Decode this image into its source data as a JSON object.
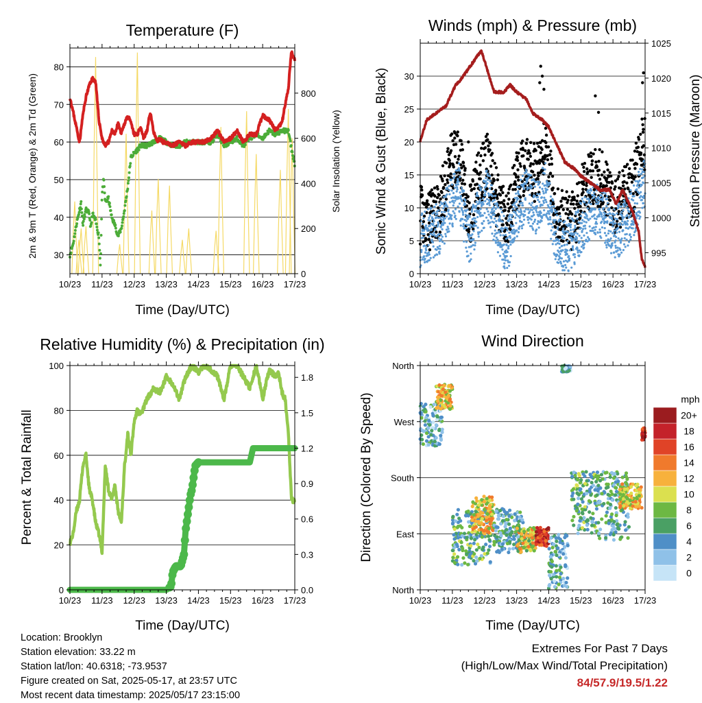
{
  "panels": {
    "temperature": {
      "title": "Temperature (F)",
      "ylabel_left": "2m & 9m T (Red, Orange) & 2m Td (Green)",
      "ylabel_right": "Solar Insolation (Yellow)",
      "xlabel": "Time (Day/UTC)"
    },
    "winds": {
      "title": "Winds (mph) & Pressure (mb)",
      "ylabel_left": "Sonic Wind & Gust (Blue, Black)",
      "ylabel_right": "Station Pressure (Maroon)",
      "xlabel": "Time (Day/UTC)"
    },
    "humidity": {
      "title": "Relative Humidity (%) & Precipitation (in)",
      "ylabel_left": "Percent & Total Rainfall",
      "xlabel": "Time (Day/UTC)"
    },
    "direction": {
      "title": "Wind Direction",
      "ylabel_left": "Direction (Colored By Speed)",
      "xlabel": "Time (Day/UTC)",
      "colorbar_title": "mph"
    }
  },
  "info": {
    "location": "Location: Brooklyn",
    "elevation": "Station elevation: 33.22 m",
    "latlon": "Station lat/lon: 40.6318; -73.9537",
    "created": "Figure created on Sat, 2025-05-17, at 23:57 UTC",
    "recent": "Most recent data timestamp: 2025/05/17 23:15:00"
  },
  "extremes": {
    "line1": "Extremes For Past 7 Days",
    "line2": "(High/Low/Max Wind/Total Precipitation)",
    "values": "84/57.9/19.5/1.22"
  },
  "chart_data": [
    {
      "type": "line",
      "title": "Temperature (F)",
      "xlabel": "Time (Day/UTC)",
      "ylabel": "2m & 9m T (Red, Orange) & 2m Td (Green)",
      "ylabel_right": "Solar Insolation (Yellow)",
      "x_ticks": [
        "10/23",
        "11/23",
        "12/23",
        "13/23",
        "14/23",
        "15/23",
        "16/23",
        "17/23"
      ],
      "xlim": [
        0,
        7
      ],
      "ylim": [
        25,
        85
      ],
      "ylim_right": [
        0,
        1000
      ],
      "yticks": [
        30,
        40,
        50,
        60,
        70,
        80
      ],
      "yticks_right": [
        0,
        200,
        400,
        600,
        800
      ],
      "grid": true,
      "series": [
        {
          "name": "2m & 9m T",
          "color": "#d42020",
          "axis": "left",
          "x": [
            0,
            0.1,
            0.2,
            0.3,
            0.4,
            0.5,
            0.6,
            0.7,
            0.8,
            0.9,
            1.0,
            1.1,
            1.2,
            1.3,
            1.4,
            1.5,
            1.6,
            1.7,
            1.8,
            1.9,
            2.0,
            2.1,
            2.2,
            2.3,
            2.4,
            2.5,
            2.6,
            2.7,
            2.8,
            2.9,
            3.0,
            3.2,
            3.4,
            3.6,
            3.8,
            4.0,
            4.2,
            4.4,
            4.6,
            4.8,
            5.0,
            5.2,
            5.4,
            5.6,
            5.8,
            6.0,
            6.2,
            6.4,
            6.5,
            6.6,
            6.7,
            6.8,
            6.85,
            6.9,
            6.95,
            7.0
          ],
          "y": [
            72,
            68,
            64,
            60,
            67,
            72,
            75,
            77,
            76,
            66,
            61,
            59,
            60,
            63,
            62,
            65,
            62,
            65,
            67,
            65,
            62,
            62,
            64,
            61,
            63,
            68,
            63,
            60,
            61,
            60,
            60,
            59,
            60,
            59,
            60,
            60,
            60,
            61,
            63,
            60,
            61,
            63,
            60,
            62,
            62,
            67,
            66,
            63,
            64,
            65,
            70,
            74,
            80,
            84,
            83,
            82
          ]
        },
        {
          "name": "2m Td",
          "color": "#4cac38",
          "axis": "left",
          "x": [
            0,
            0.1,
            0.2,
            0.3,
            0.35,
            0.4,
            0.45,
            0.5,
            0.6,
            0.65,
            0.7,
            0.8,
            0.9,
            0.95,
            1.0,
            1.05,
            1.1,
            1.2,
            1.3,
            1.4,
            1.5,
            1.6,
            1.7,
            1.8,
            1.9,
            2.0,
            2.2,
            2.4,
            2.6,
            2.8,
            3.0,
            3.2,
            3.4,
            3.6,
            3.8,
            4.0,
            4.2,
            4.4,
            4.6,
            4.8,
            5.0,
            5.2,
            5.4,
            5.6,
            5.8,
            6.0,
            6.2,
            6.4,
            6.6,
            6.8,
            6.9,
            7.0
          ],
          "y": [
            30,
            33,
            38,
            42,
            44,
            38,
            40,
            42,
            41,
            37,
            41,
            39,
            35,
            27,
            46,
            50,
            44,
            45,
            40,
            38,
            35,
            37,
            42,
            48,
            56,
            57,
            59,
            59,
            60,
            61,
            60,
            59,
            59,
            60,
            60,
            60,
            60,
            60,
            62,
            59,
            60,
            61,
            59,
            61,
            62,
            61,
            63,
            62,
            63,
            63,
            58,
            54
          ]
        },
        {
          "name": "Solar Insolation",
          "color": "#f5d965",
          "axis": "right",
          "peaks_x": [
            0.15,
            0.28,
            0.35,
            0.5,
            0.8,
            1.55,
            1.75,
            2.1,
            2.55,
            2.75,
            3.1,
            3.5,
            3.7,
            4.55,
            4.7,
            5.5,
            5.8,
            6.55,
            6.8,
            6.92
          ],
          "peaks_y": [
            320,
            150,
            200,
            210,
            960,
            130,
            620,
            980,
            280,
            420,
            390,
            150,
            200,
            190,
            650,
            720,
            530,
            460,
            730,
            600
          ]
        }
      ]
    },
    {
      "type": "scatter",
      "title": "Winds (mph) & Pressure (mb)",
      "xlabel": "Time (Day/UTC)",
      "ylabel": "Sonic Wind & Gust (Blue, Black)",
      "ylabel_right": "Station Pressure (Maroon)",
      "x_ticks": [
        "10/23",
        "11/23",
        "12/23",
        "13/23",
        "14/23",
        "15/23",
        "16/23",
        "17/23"
      ],
      "xlim": [
        0,
        7
      ],
      "ylim": [
        0,
        35
      ],
      "ylim_right": [
        992,
        1025
      ],
      "yticks": [
        0,
        5,
        10,
        15,
        20,
        25,
        30
      ],
      "yticks_right": [
        995,
        1000,
        1005,
        1010,
        1015,
        1020,
        1025
      ],
      "grid": true,
      "series": [
        {
          "name": "Sonic Wind",
          "color": "#5b9bd5",
          "kind": "scatter",
          "envelope_x": [
            0,
            0.3,
            0.6,
            0.9,
            1.2,
            1.5,
            1.8,
            2.1,
            2.4,
            2.7,
            3.0,
            3.3,
            3.6,
            3.9,
            4.2,
            4.5,
            4.8,
            5.1,
            5.4,
            5.7,
            6.0,
            6.3,
            6.6,
            6.9,
            7.0
          ],
          "envelope_y": [
            5,
            6,
            7,
            10,
            13,
            5,
            9,
            12,
            7,
            4,
            9,
            12,
            10,
            13,
            6,
            4,
            5,
            8,
            10,
            9,
            6,
            7,
            9,
            13,
            14
          ]
        },
        {
          "name": "Gust",
          "color": "#000000",
          "kind": "scatter",
          "envelope_x": [
            0,
            0.3,
            0.6,
            0.9,
            1.2,
            1.5,
            1.8,
            2.1,
            2.4,
            2.7,
            3.0,
            3.3,
            3.6,
            3.9,
            4.2,
            4.5,
            4.8,
            5.1,
            5.4,
            5.7,
            6.0,
            6.3,
            6.6,
            6.9,
            7.0
          ],
          "envelope_y": [
            9,
            8,
            10,
            16,
            19,
            8,
            14,
            17,
            11,
            8,
            14,
            17,
            15,
            20,
            10,
            8,
            8,
            13,
            15,
            14,
            10,
            12,
            13,
            19,
            20
          ]
        },
        {
          "name": "Station Pressure",
          "color": "#a51d1d",
          "kind": "line",
          "axis": "right",
          "x": [
            0,
            0.2,
            0.5,
            0.8,
            1.1,
            1.3,
            1.6,
            1.9,
            2.1,
            2.3,
            2.6,
            2.8,
            3.0,
            3.3,
            3.5,
            3.8,
            4.0,
            4.2,
            4.5,
            4.8,
            5.0,
            5.3,
            5.6,
            5.9,
            6.1,
            6.3,
            6.6,
            6.8,
            6.9,
            7.0
          ],
          "y": [
            1011,
            1014,
            1015,
            1016,
            1019,
            1020,
            1022,
            1024,
            1021,
            1018,
            1018,
            1019,
            1018,
            1017,
            1015,
            1014,
            1013,
            1011,
            1008,
            1007,
            1006,
            1005,
            1004,
            1004,
            1002,
            1004,
            1001,
            998,
            994,
            993
          ]
        }
      ]
    },
    {
      "type": "line",
      "title": "Relative Humidity (%) & Precipitation (in)",
      "xlabel": "Time (Day/UTC)",
      "ylabel": "Percent & Total Rainfall",
      "x_ticks": [
        "10/23",
        "11/23",
        "12/23",
        "13/23",
        "14/23",
        "15/23",
        "16/23",
        "17/23"
      ],
      "xlim": [
        0,
        7
      ],
      "ylim": [
        0,
        100
      ],
      "ylim_right": [
        0,
        1.9
      ],
      "yticks": [
        0,
        20,
        40,
        60,
        80,
        100
      ],
      "yticks_right": [
        0.0,
        0.3,
        0.6,
        0.9,
        1.2,
        1.5,
        1.8
      ],
      "grid": true,
      "series": [
        {
          "name": "Relative Humidity",
          "color": "#94c94e",
          "axis": "left",
          "x": [
            0,
            0.1,
            0.2,
            0.3,
            0.4,
            0.5,
            0.6,
            0.7,
            0.8,
            0.9,
            1.0,
            1.1,
            1.2,
            1.3,
            1.4,
            1.5,
            1.6,
            1.7,
            1.8,
            1.9,
            2.0,
            2.1,
            2.2,
            2.4,
            2.6,
            2.8,
            3.0,
            3.2,
            3.4,
            3.6,
            3.8,
            4.0,
            4.2,
            4.4,
            4.6,
            4.8,
            5.0,
            5.2,
            5.4,
            5.6,
            5.8,
            6.0,
            6.2,
            6.4,
            6.5,
            6.6,
            6.7,
            6.8,
            6.9,
            7.0
          ],
          "y": [
            21,
            25,
            35,
            40,
            55,
            60,
            45,
            40,
            30,
            25,
            17,
            55,
            45,
            40,
            47,
            35,
            30,
            55,
            70,
            60,
            75,
            80,
            78,
            85,
            90,
            88,
            95,
            92,
            85,
            95,
            100,
            97,
            100,
            98,
            95,
            85,
            100,
            100,
            95,
            90,
            100,
            85,
            98,
            95,
            97,
            88,
            85,
            70,
            40,
            40
          ]
        },
        {
          "name": "Total Rainfall",
          "color": "#4cb84a",
          "axis": "right",
          "x": [
            0,
            1,
            2,
            3,
            3.15,
            3.2,
            3.3,
            3.45,
            3.55,
            3.6,
            3.7,
            3.75,
            3.8,
            3.9,
            4.0,
            5.0,
            5.6,
            5.7,
            6.0,
            6.5,
            7.0
          ],
          "y": [
            0,
            0,
            0,
            0,
            0.03,
            0.15,
            0.2,
            0.2,
            0.3,
            0.5,
            0.7,
            0.8,
            0.85,
            1.05,
            1.08,
            1.08,
            1.08,
            1.2,
            1.2,
            1.2,
            1.2
          ]
        }
      ]
    },
    {
      "type": "scatter",
      "title": "Wind Direction",
      "xlabel": "Time (Day/UTC)",
      "ylabel": "Direction (Colored By Speed)",
      "x_ticks": [
        "10/23",
        "11/23",
        "12/23",
        "13/23",
        "14/23",
        "15/23",
        "16/23",
        "17/23"
      ],
      "xlim": [
        0,
        7
      ],
      "ylim": [
        0,
        360
      ],
      "ytick_labels": [
        "North",
        "East",
        "South",
        "West",
        "North"
      ],
      "grid": true,
      "colorbar": {
        "title": "mph",
        "labels": [
          "0",
          "2",
          "4",
          "6",
          "8",
          "10",
          "12",
          "14",
          "16",
          "18",
          "20+"
        ],
        "colors": [
          "#c6e4f7",
          "#8fc1e8",
          "#4f8fc7",
          "#4aa064",
          "#6db843",
          "#dbe04f",
          "#f7b13c",
          "#f07a2c",
          "#e04327",
          "#c4222a",
          "#9b1c1f"
        ]
      },
      "clusters": [
        {
          "x": [
            0,
            0.7
          ],
          "dir": [
            230,
            300
          ],
          "speed": 4
        },
        {
          "x": [
            0.5,
            1.0
          ],
          "dir": [
            290,
            330
          ],
          "speed": 11
        },
        {
          "x": [
            1.0,
            2.2
          ],
          "dir": [
            40,
            130
          ],
          "speed": 6
        },
        {
          "x": [
            1.6,
            2.3
          ],
          "dir": [
            90,
            150
          ],
          "speed": 11
        },
        {
          "x": [
            2.3,
            3.2
          ],
          "dir": [
            60,
            130
          ],
          "speed": 5
        },
        {
          "x": [
            3.0,
            3.6
          ],
          "dir": [
            60,
            100
          ],
          "speed": 10
        },
        {
          "x": [
            3.6,
            4.0
          ],
          "dir": [
            70,
            100
          ],
          "speed": 17
        },
        {
          "x": [
            4.0,
            4.6
          ],
          "dir": [
            0,
            90
          ],
          "speed": 4
        },
        {
          "x": [
            4.4,
            4.7
          ],
          "dir": [
            350,
            360
          ],
          "speed": 2
        },
        {
          "x": [
            4.7,
            5.5
          ],
          "dir": [
            90,
            190
          ],
          "speed": 6
        },
        {
          "x": [
            5.5,
            6.5
          ],
          "dir": [
            80,
            190
          ],
          "speed": 5
        },
        {
          "x": [
            6.2,
            6.9
          ],
          "dir": [
            130,
            170
          ],
          "speed": 11
        },
        {
          "x": [
            6.9,
            7.0
          ],
          "dir": [
            240,
            260
          ],
          "speed": 18
        }
      ]
    }
  ]
}
